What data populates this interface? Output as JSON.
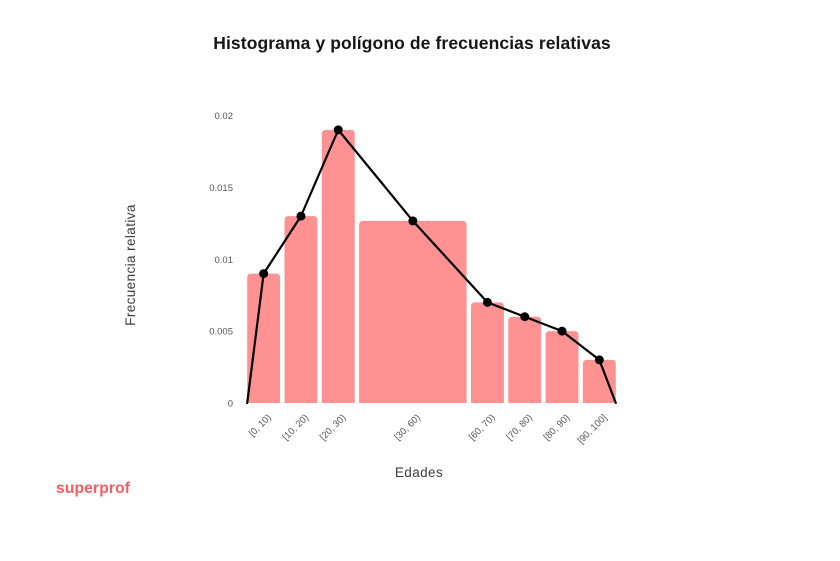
{
  "page": {
    "background": "#ffffff"
  },
  "chart_data": {
    "type": "bar",
    "subtype": "histogram-with-frequency-polygon",
    "title": "Histograma y polígono de frecuencias relativas",
    "xlabel": "Edades",
    "ylabel": "Frecuencia relativa",
    "categories": [
      "[0, 10)",
      "[10, 20)",
      "[20, 30)",
      "[30, 60)",
      "[60, 70)",
      "[70, 80)",
      "[80, 90)",
      "[90, 100]"
    ],
    "class_widths": [
      10,
      10,
      10,
      30,
      10,
      10,
      10,
      10
    ],
    "values": [
      0.009,
      0.013,
      0.019,
      0.012667,
      0.007,
      0.006,
      0.005,
      0.003
    ],
    "polygon": {
      "description": "line through bar-top midpoints, starting and ending at 0 on the baseline",
      "points_y": [
        0,
        0.009,
        0.013,
        0.019,
        0.012667,
        0.007,
        0.006,
        0.005,
        0.003,
        0
      ]
    },
    "yticks": [
      0,
      0.005,
      0.01,
      0.015,
      0.02
    ],
    "ylim": [
      0,
      0.02
    ],
    "grid": false,
    "legend": "none",
    "bar_color": "#fe9292",
    "line_color": "#000000",
    "marker_color": "#000000",
    "tick_label_color": "#555555",
    "axis_title_color": "#3d3d3d",
    "title_color": "#161616"
  },
  "footer": {
    "logo_text": "superprof",
    "logo_color": "#fb5a5f"
  }
}
